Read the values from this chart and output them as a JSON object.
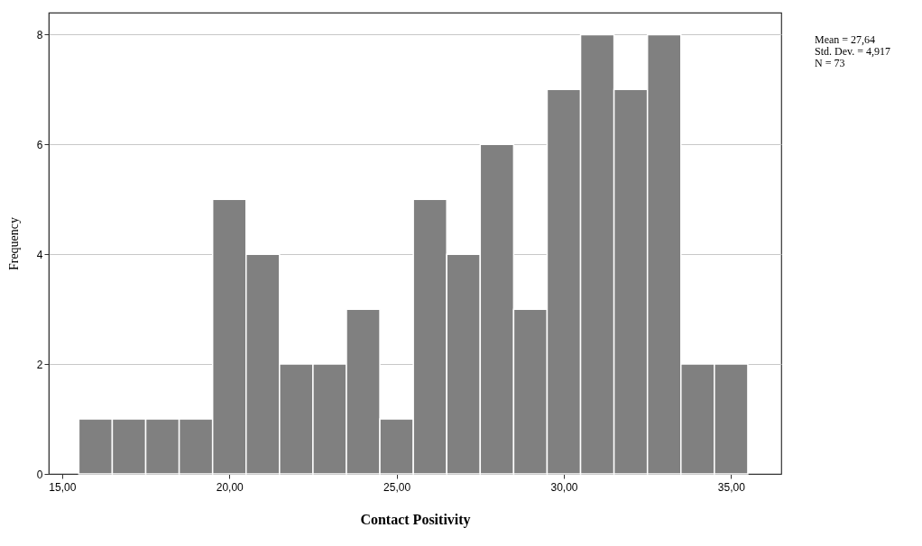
{
  "chart_data": {
    "type": "histogram",
    "xlabel": "Contact Positivity",
    "ylabel": "Frequency",
    "bins": [
      15.5,
      16.5,
      17.5,
      18.5,
      19.5,
      20.5,
      21.5,
      22.5,
      23.5,
      24.5,
      25.5,
      26.5,
      27.5,
      28.5,
      29.5,
      30.5,
      31.5,
      32.5,
      33.5,
      34.5,
      35.5
    ],
    "values": [
      1,
      1,
      1,
      1,
      5,
      4,
      2,
      2,
      3,
      1,
      5,
      4,
      6,
      3,
      7,
      8,
      7,
      8,
      2,
      2
    ],
    "color": "#808080",
    "xlim": [
      14.6,
      36.5
    ],
    "xticks": [
      {
        "value": 15,
        "label": "15,00"
      },
      {
        "value": 20,
        "label": "20,00"
      },
      {
        "value": 25,
        "label": "25,00"
      },
      {
        "value": 30,
        "label": "30,00"
      },
      {
        "value": 35,
        "label": "35,00"
      }
    ],
    "ylim": [
      0,
      8.4
    ],
    "yticks": [
      0,
      2,
      4,
      6,
      8
    ],
    "grid": "y",
    "annotations": [
      "Mean = 27,64",
      "Std. Dev. = 4,917",
      "N = 73"
    ]
  }
}
